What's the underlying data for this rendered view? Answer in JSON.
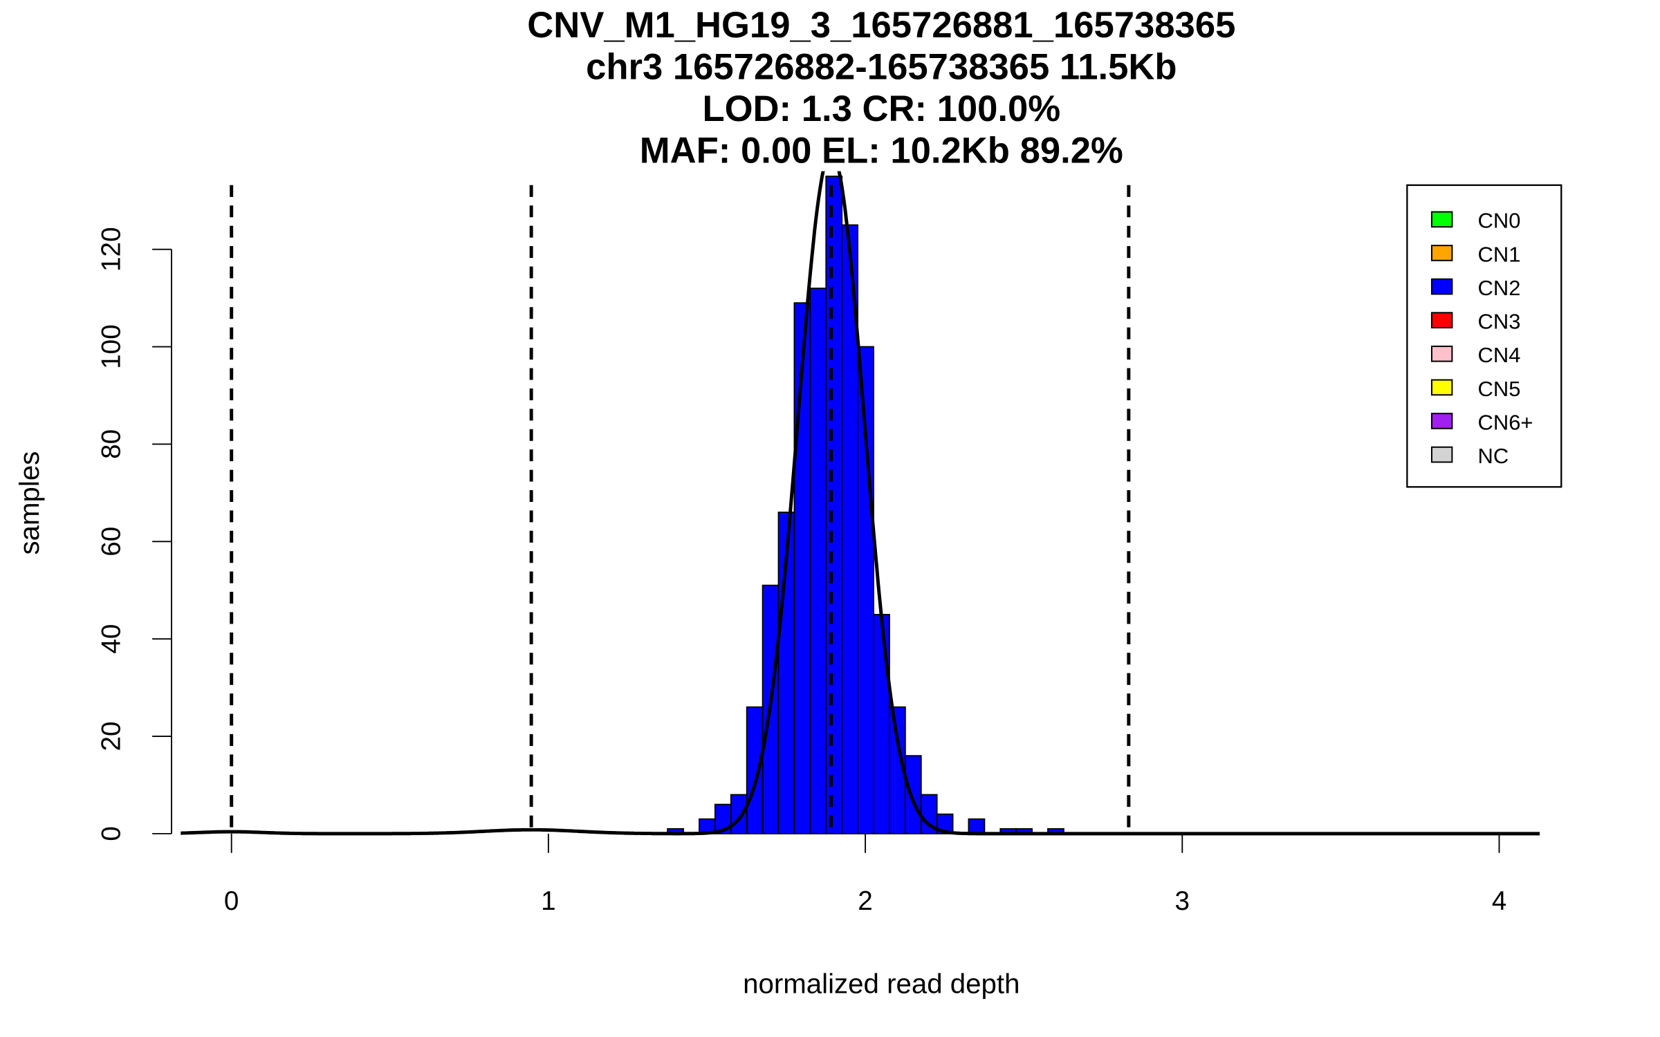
{
  "chart_data": {
    "type": "bar",
    "title_lines": [
      "CNV_M1_HG19_3_165726881_165738365",
      "chr3 165726882-165738365 11.5Kb",
      "LOD: 1.3 CR: 100.0%",
      "MAF: 0.00 EL: 10.2Kb 89.2%"
    ],
    "xlabel": "normalized read depth",
    "ylabel": "samples",
    "xlim": [
      -0.16,
      4.13
    ],
    "ylim": [
      0,
      135
    ],
    "xticks": [
      0,
      1,
      2,
      3,
      4
    ],
    "yticks": [
      0,
      20,
      40,
      60,
      80,
      100,
      120
    ],
    "bin_width": 0.05,
    "bin_starts": [
      1.376,
      1.426,
      1.476,
      1.526,
      1.576,
      1.626,
      1.676,
      1.726,
      1.776,
      1.826,
      1.876,
      1.926,
      1.976,
      2.026,
      2.076,
      2.126,
      2.176,
      2.226,
      2.276,
      2.326,
      2.376,
      2.426,
      2.476,
      2.526,
      2.576
    ],
    "counts": [
      1,
      0,
      3,
      6,
      8,
      26,
      51,
      66,
      109,
      112,
      135,
      125,
      100,
      45,
      26,
      16,
      8,
      4,
      0,
      3,
      0,
      1,
      1,
      0,
      1
    ],
    "bar_color": "#0000FF",
    "dashed_lines": [
      0.0,
      0.946,
      1.892,
      2.831
    ],
    "fit_curve": {
      "components": [
        {
          "mean": 1.892,
          "sd": 0.105,
          "peak": 140
        },
        {
          "mean": 0.946,
          "sd": 0.15,
          "peak": 0.8
        },
        {
          "mean": 0.0,
          "sd": 0.1,
          "peak": 0.4
        }
      ]
    },
    "legend": {
      "placement": "top-right",
      "entries": [
        {
          "label": "CN0",
          "color": "#00FF00"
        },
        {
          "label": "CN1",
          "color": "#FFA500"
        },
        {
          "label": "CN2",
          "color": "#0000FF"
        },
        {
          "label": "CN3",
          "color": "#FF0000"
        },
        {
          "label": "CN4",
          "color": "#FFC0CB"
        },
        {
          "label": "CN5",
          "color": "#FFFF00"
        },
        {
          "label": "CN6+",
          "color": "#A020F0"
        },
        {
          "label": "NC",
          "color": "#D3D3D3"
        }
      ]
    }
  }
}
